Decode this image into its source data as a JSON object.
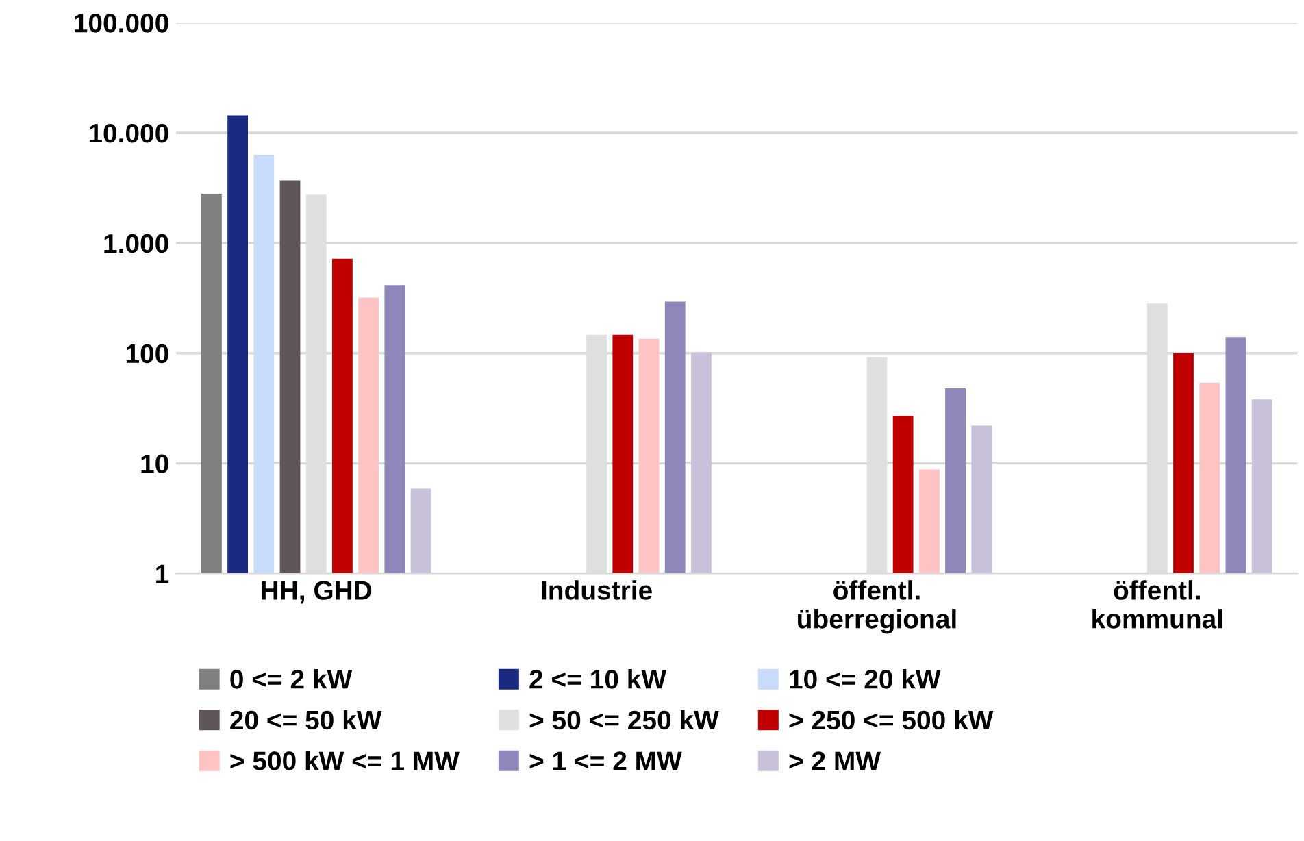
{
  "chart_data": {
    "type": "bar",
    "log": true,
    "grid": "y",
    "legend": "bottom",
    "categories": [
      "HH, GHD",
      "Industrie",
      "öffentl.\nüberregional",
      "öffentl.\nkommunal"
    ],
    "ylim": [
      1,
      100000
    ],
    "yticks": [
      {
        "value": 1,
        "label": "1"
      },
      {
        "value": 10,
        "label": "10"
      },
      {
        "value": 100,
        "label": "100"
      },
      {
        "value": 1000,
        "label": "1.000"
      },
      {
        "value": 10000,
        "label": "10.000"
      },
      {
        "value": 100000,
        "label": "100.000"
      }
    ],
    "series": [
      {
        "name": "0 <= 2 kW",
        "color": "#808080",
        "values": [
          2800,
          null,
          null,
          null
        ]
      },
      {
        "name": "2 <= 10 kW",
        "color": "#1a2a80",
        "values": [
          14400,
          null,
          null,
          null
        ]
      },
      {
        "name": "10 <= 20 kW",
        "color": "#c9dbfb",
        "values": [
          6300,
          null,
          null,
          null
        ]
      },
      {
        "name": "20 <= 50 kW",
        "color": "#5e565a",
        "values": [
          3700,
          null,
          null,
          null
        ]
      },
      {
        "name": "> 50 <= 250 kW",
        "color": "#dfdfdf",
        "values": [
          2750,
          147,
          92,
          282
        ]
      },
      {
        "name": "> 250 <= 500 kW",
        "color": "#c00000",
        "values": [
          720,
          147,
          27,
          100
        ]
      },
      {
        "name": "> 500 kW <= 1 MW",
        "color": "#fec3c3",
        "values": [
          320,
          135,
          8.8,
          54
        ]
      },
      {
        "name": "> 1 <= 2 MW",
        "color": "#8e87b9",
        "values": [
          415,
          294,
          48,
          140
        ]
      },
      {
        "name": "> 2 MW",
        "color": "#c9c0da",
        "values": [
          5.9,
          102,
          22,
          38
        ]
      }
    ]
  }
}
